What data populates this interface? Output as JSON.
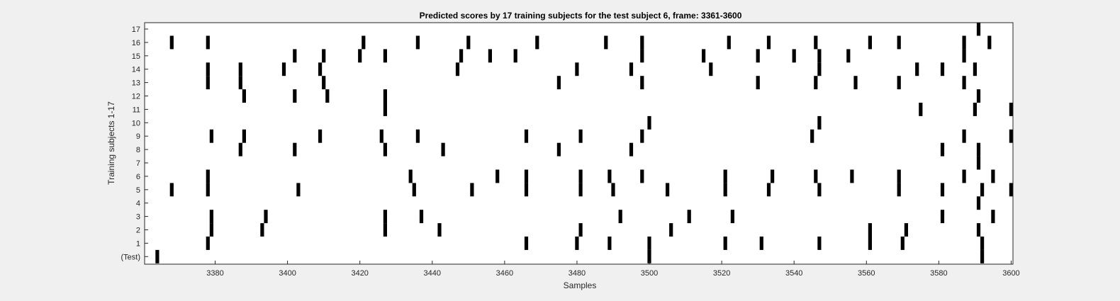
{
  "chart_data": {
    "type": "raster",
    "title": "Predicted scores by 17 training subjects for the test subject 6, frame: 3361-3600",
    "xlabel": "Samples",
    "ylabel": "Training subjects 1-17",
    "xlim": [
      3361,
      3600
    ],
    "x_ticks": [
      3380,
      3400,
      3420,
      3440,
      3460,
      3480,
      3500,
      3520,
      3540,
      3560,
      3580,
      3600
    ],
    "y_tick_labels": [
      "(Test)",
      "1",
      "2",
      "3",
      "4",
      "5",
      "6",
      "7",
      "8",
      "9",
      "10",
      "11",
      "12",
      "13",
      "14",
      "15",
      "16",
      "17"
    ],
    "grid": false,
    "colors": {
      "background": "#f0f0f0",
      "plot_area": "#ffffff",
      "marks": "#000000"
    },
    "rows": [
      {
        "label": "(Test)",
        "x": [
          3364,
          3500,
          3592
        ]
      },
      {
        "label": "1",
        "x": [
          3378,
          3466,
          3480,
          3489,
          3500,
          3521,
          3531,
          3547,
          3561,
          3570,
          3592
        ]
      },
      {
        "label": "2",
        "x": [
          3379,
          3393,
          3427,
          3442,
          3481,
          3506,
          3561,
          3571,
          3591
        ]
      },
      {
        "label": "3",
        "x": [
          3379,
          3394,
          3427,
          3437,
          3492,
          3511,
          3523,
          3581,
          3595
        ]
      },
      {
        "label": "4",
        "x": [
          3591
        ]
      },
      {
        "label": "5",
        "x": [
          3368,
          3378,
          3403,
          3435,
          3451,
          3466,
          3481,
          3490,
          3505,
          3521,
          3533,
          3547,
          3569,
          3581,
          3592,
          3600
        ]
      },
      {
        "label": "6",
        "x": [
          3378,
          3434,
          3458,
          3466,
          3481,
          3489,
          3498,
          3521,
          3534,
          3546,
          3556,
          3569,
          3587,
          3595
        ]
      },
      {
        "label": "7",
        "x": [
          3591
        ]
      },
      {
        "label": "8",
        "x": [
          3387,
          3402,
          3427,
          3443,
          3475,
          3495,
          3581,
          3591
        ]
      },
      {
        "label": "9",
        "x": [
          3379,
          3388,
          3409,
          3426,
          3436,
          3466,
          3481,
          3498,
          3545,
          3587,
          3600
        ]
      },
      {
        "label": "10",
        "x": [
          3500,
          3547
        ]
      },
      {
        "label": "11",
        "x": [
          3427,
          3575,
          3590,
          3600
        ]
      },
      {
        "label": "12",
        "x": [
          3388,
          3402,
          3411,
          3427,
          3591
        ]
      },
      {
        "label": "13",
        "x": [
          3378,
          3387,
          3410,
          3475,
          3498,
          3530,
          3546,
          3557,
          3569,
          3587
        ]
      },
      {
        "label": "14",
        "x": [
          3378,
          3387,
          3399,
          3409,
          3447,
          3480,
          3495,
          3517,
          3547,
          3574,
          3581,
          3590
        ]
      },
      {
        "label": "15",
        "x": [
          3402,
          3410,
          3420,
          3427,
          3448,
          3456,
          3463,
          3498,
          3515,
          3530,
          3540,
          3547,
          3555,
          3587
        ]
      },
      {
        "label": "16",
        "x": [
          3368,
          3378,
          3421,
          3436,
          3450,
          3469,
          3488,
          3498,
          3522,
          3533,
          3546,
          3561,
          3569,
          3587,
          3594
        ]
      },
      {
        "label": "17",
        "x": [
          3591
        ]
      }
    ]
  }
}
